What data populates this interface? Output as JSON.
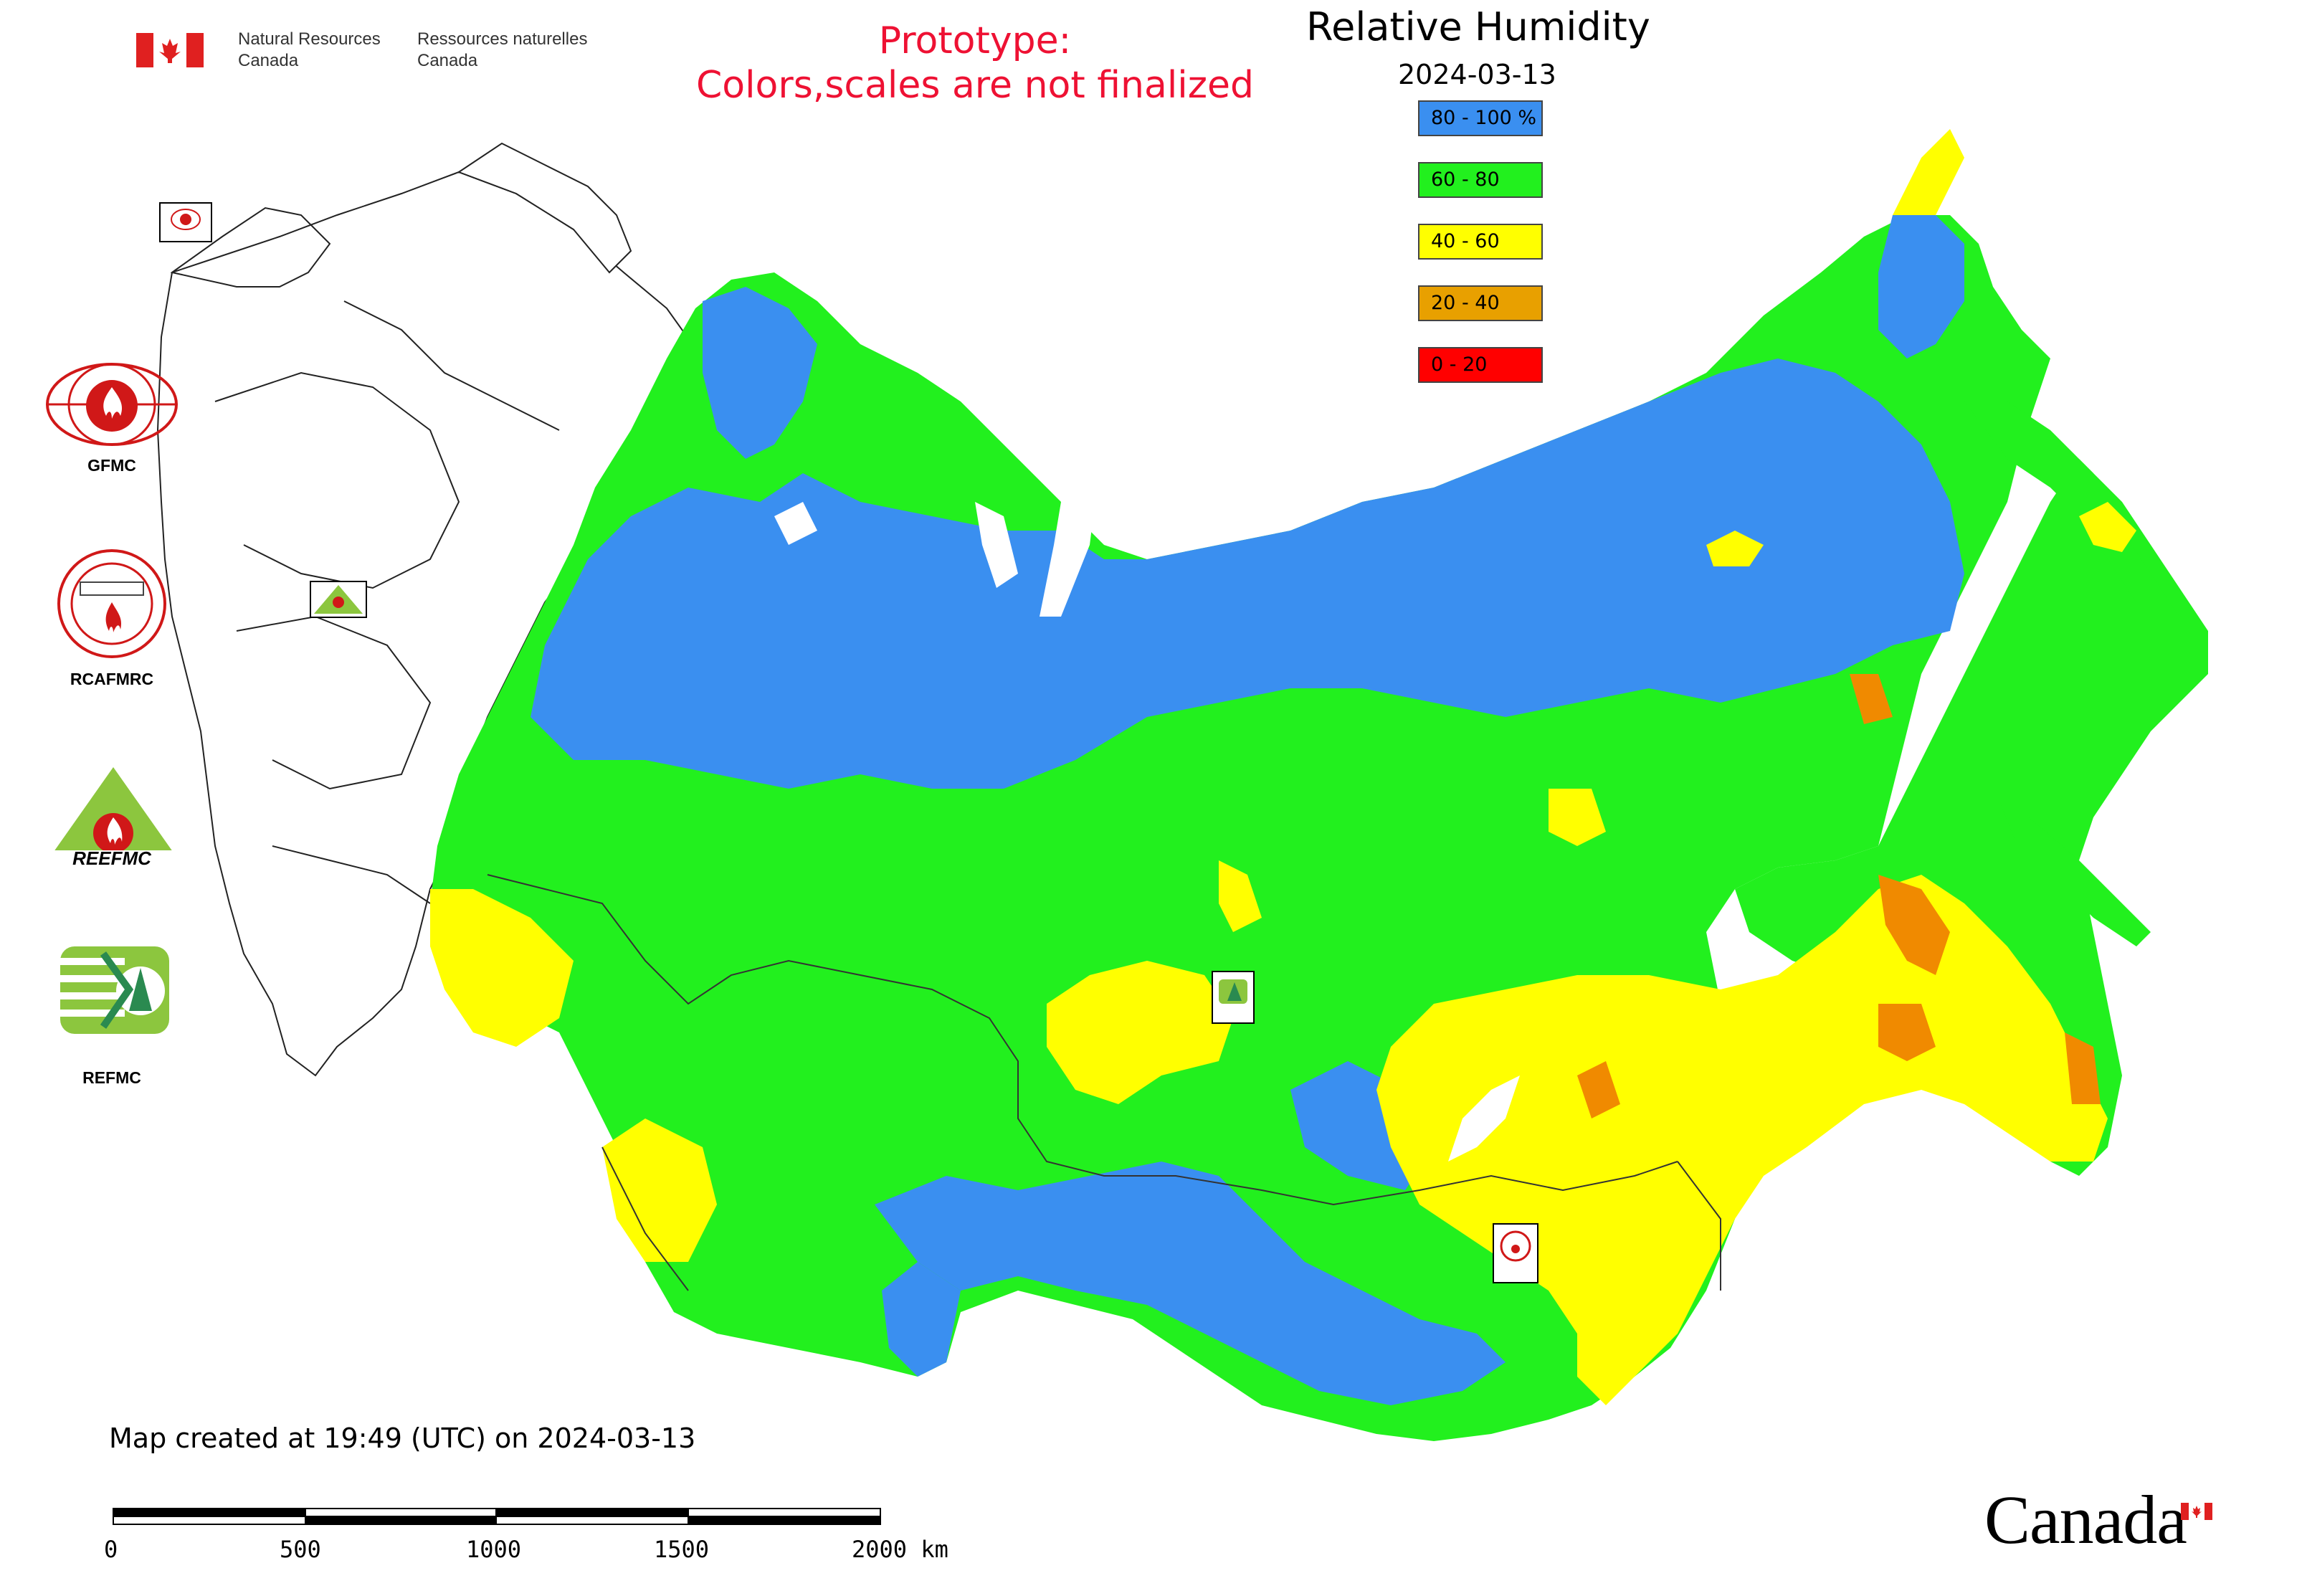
{
  "header": {
    "agency_en_line1": "Natural Resources",
    "agency_en_line2": "Canada",
    "agency_fr_line1": "Ressources naturelles",
    "agency_fr_line2": "Canada",
    "prototype_line1": "Prototype:",
    "prototype_line2": "Colors,scales are not finalized"
  },
  "map": {
    "title": "Relative Humidity",
    "date": "2024-03-13"
  },
  "legend": {
    "items": [
      {
        "label": "80 - 100 %",
        "color": "#3a8ff0"
      },
      {
        "label": "60 - 80",
        "color": "#22f01e"
      },
      {
        "label": "40 - 60",
        "color": "#ffff00"
      },
      {
        "label": "20 - 40",
        "color": "#e8a000"
      },
      {
        "label": "0 - 20",
        "color": "#ff0000"
      }
    ]
  },
  "logos": {
    "gfmc": "GFMC",
    "rcafmrc": "RCAFMRC",
    "reefmc": "REEFMC",
    "refmc": "REFMC"
  },
  "footer": {
    "created": "Map created at 19:49 (UTC) on 2024-03-13",
    "scale_ticks": [
      "0",
      "500",
      "1000",
      "1500",
      "2000 km"
    ],
    "wordmark": "Canada"
  }
}
